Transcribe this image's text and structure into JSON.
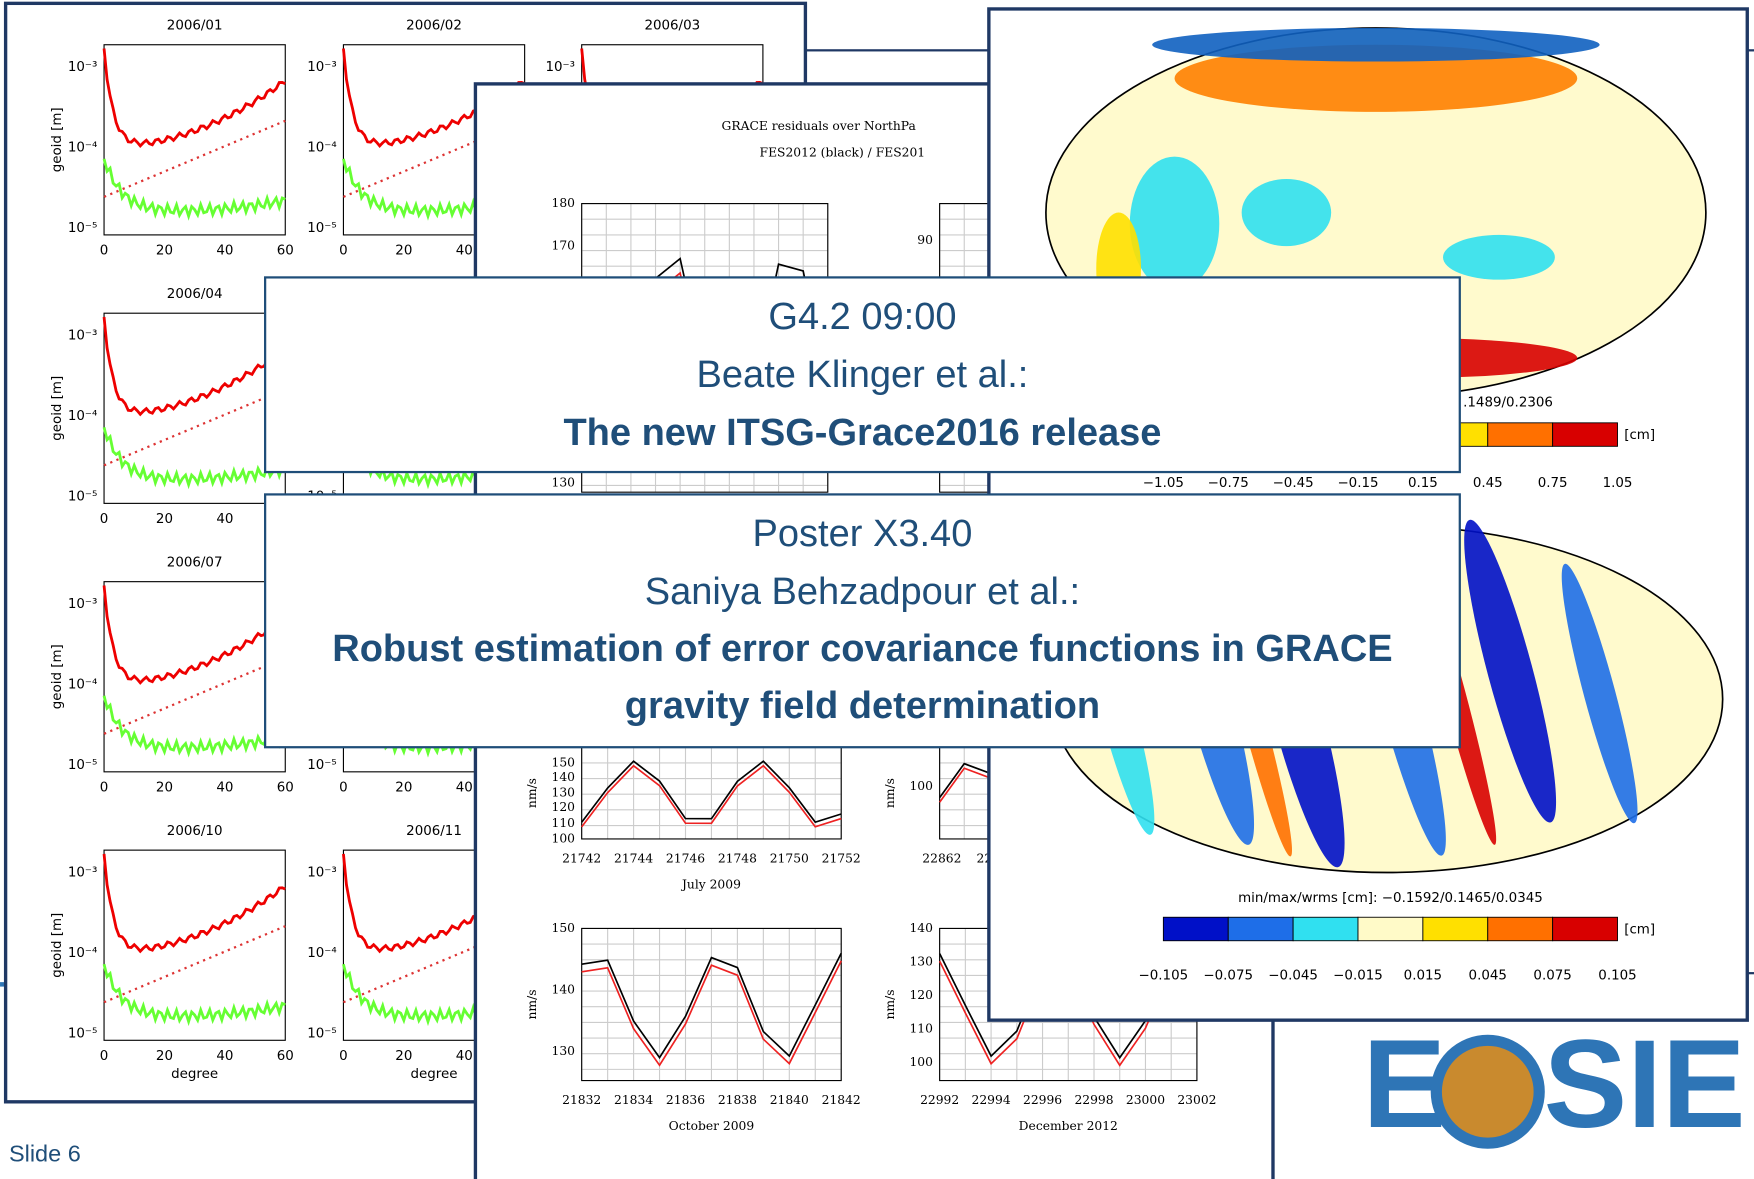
{
  "slide_number": "Slide 6",
  "left_panel": {
    "subplots": [
      {
        "title": "2006/01"
      },
      {
        "title": "2006/02"
      },
      {
        "title": "2006/03"
      },
      {
        "title": "2006/04"
      },
      {
        "title": "2006/07"
      },
      {
        "title": "2006/10"
      },
      {
        "title": "2006/11"
      }
    ],
    "y_label": "geoid [m]",
    "x_label": "degree",
    "yticks": [
      "10⁻³",
      "10⁻⁴",
      "10⁻⁵"
    ],
    "xticks": [
      "0",
      "20",
      "40",
      "60"
    ]
  },
  "middle_panel": {
    "title": [
      "GRACE residuals over NorthPa",
      "FES2012 (black) / FES201"
    ],
    "y_label": "nm/s",
    "charts": [
      {
        "yticks": [
          "180",
          "170",
          "130"
        ]
      },
      {
        "yticks": [
          "90"
        ]
      },
      {
        "yticks": [
          "150",
          "140",
          "130",
          "120",
          "110",
          "100"
        ],
        "xticks": [
          "21742",
          "21744",
          "21746",
          "21748",
          "21750",
          "21752"
        ],
        "x_label": "July 2009"
      },
      {
        "yticks": [
          "100"
        ],
        "xticks": [
          "22862",
          "22"
        ]
      },
      {
        "yticks": [
          "150",
          "140",
          "130"
        ],
        "xticks": [
          "21832",
          "21834",
          "21836",
          "21838",
          "21840",
          "21842"
        ],
        "x_label": "October 2009"
      },
      {
        "yticks": [
          "140",
          "130",
          "120",
          "110",
          "100"
        ],
        "xticks": [
          "22992",
          "22994",
          "22996",
          "22998",
          "23000",
          "23002"
        ],
        "x_label": "December 2012"
      }
    ]
  },
  "right_panel": {
    "maps": [
      {
        "stats": ".1489/0.2306",
        "unit": "[cm]",
        "colorbar_ticks": [
          "−1.05",
          "−0.75",
          "−0.45",
          "−0.15",
          "0.15",
          "0.45",
          "0.75",
          "1.05"
        ]
      },
      {
        "stats": "min/max/wrms [cm]: −0.1592/0.1465/0.0345",
        "unit": "[cm]",
        "colorbar_ticks": [
          "−0.105",
          "−0.075",
          "−0.045",
          "−0.015",
          "0.015",
          "0.045",
          "0.075",
          "0.105"
        ]
      }
    ]
  },
  "boxes": [
    {
      "lines": [
        "G4.2 09:00",
        "Beate Klinger et al.:",
        "The new ITSG-Grace2016 release"
      ]
    },
    {
      "lines": [
        "Poster X3.40",
        "Saniya Behzadpour et al.:",
        "Robust estimation of error covariance functions in GRACE",
        "gravity field determination"
      ]
    }
  ],
  "logo": [
    "E",
    "SIEM"
  ]
}
